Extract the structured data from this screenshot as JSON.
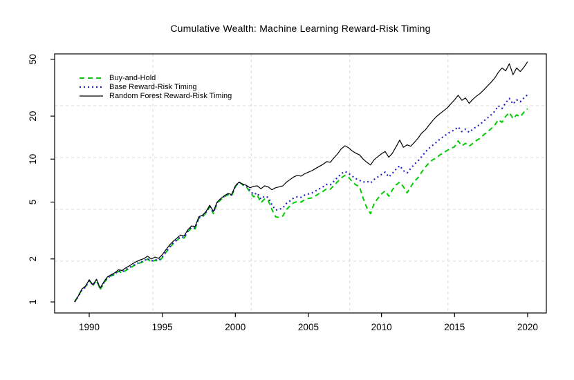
{
  "title": "Cumulative Wealth: Machine Learning Reward-Risk Timing",
  "axes": {
    "x_ticks": [
      1990,
      1995,
      2000,
      2005,
      2010,
      2015,
      2020
    ],
    "y_ticks": [
      1,
      2,
      5,
      10,
      20,
      50
    ],
    "y_scale": "log",
    "grid": {
      "nx": 5,
      "ny": 5
    }
  },
  "colors": {
    "background": "#ffffff",
    "axis": "#000000",
    "grid": "#d8d8d8",
    "buy_and_hold": "#00cc00",
    "base_timing": "#2222cc",
    "random_forest": "#000000"
  },
  "chart_data": {
    "type": "line",
    "title": "Cumulative Wealth: Machine Learning Reward-Risk Timing",
    "xlabel": "",
    "ylabel": "",
    "y_scale": "log",
    "ylim": [
      0.84,
      54
    ],
    "xlim": [
      1987.6,
      2021.3
    ],
    "legend_position": "top-left",
    "grid": "light-gray-dashed",
    "x": [
      1989.0,
      1989.25,
      1989.5,
      1989.75,
      1990.0,
      1990.25,
      1990.5,
      1990.75,
      1991.0,
      1991.25,
      1991.5,
      1991.75,
      1992.0,
      1992.25,
      1992.5,
      1992.75,
      1993.0,
      1993.25,
      1993.5,
      1993.75,
      1994.0,
      1994.25,
      1994.5,
      1994.75,
      1995.0,
      1995.25,
      1995.5,
      1995.75,
      1996.0,
      1996.25,
      1996.5,
      1996.75,
      1997.0,
      1997.25,
      1997.5,
      1997.75,
      1998.0,
      1998.25,
      1998.5,
      1998.75,
      1999.0,
      1999.25,
      1999.5,
      1999.75,
      2000.0,
      2000.25,
      2000.5,
      2000.75,
      2001.0,
      2001.25,
      2001.5,
      2001.75,
      2002.0,
      2002.25,
      2002.5,
      2002.75,
      2003.0,
      2003.25,
      2003.5,
      2003.75,
      2004.0,
      2004.25,
      2004.5,
      2004.75,
      2005.0,
      2005.25,
      2005.5,
      2005.75,
      2006.0,
      2006.25,
      2006.5,
      2006.75,
      2007.0,
      2007.25,
      2007.5,
      2007.75,
      2008.0,
      2008.25,
      2008.5,
      2008.75,
      2009.0,
      2009.25,
      2009.5,
      2009.75,
      2010.0,
      2010.25,
      2010.5,
      2010.75,
      2011.0,
      2011.25,
      2011.5,
      2011.75,
      2012.0,
      2012.25,
      2012.5,
      2012.75,
      2013.0,
      2013.25,
      2013.5,
      2013.75,
      2014.0,
      2014.25,
      2014.5,
      2014.75,
      2015.0,
      2015.25,
      2015.5,
      2015.75,
      2016.0,
      2016.25,
      2016.5,
      2016.75,
      2017.0,
      2017.25,
      2017.5,
      2017.75,
      2018.0,
      2018.25,
      2018.5,
      2018.75,
      2019.0,
      2019.25,
      2019.5,
      2019.75,
      2020.0
    ],
    "series": [
      {
        "name": "Buy-and-Hold",
        "color": "#00cc00",
        "line": "dashed",
        "values": [
          1.0,
          1.1,
          1.22,
          1.28,
          1.42,
          1.3,
          1.42,
          1.22,
          1.35,
          1.48,
          1.52,
          1.56,
          1.64,
          1.6,
          1.66,
          1.72,
          1.78,
          1.84,
          1.88,
          1.92,
          2.0,
          1.9,
          1.96,
          1.92,
          2.04,
          2.22,
          2.4,
          2.56,
          2.7,
          2.84,
          2.8,
          3.1,
          3.3,
          3.25,
          3.85,
          3.95,
          4.2,
          4.65,
          4.15,
          4.9,
          5.2,
          5.45,
          5.65,
          5.55,
          6.4,
          6.95,
          6.6,
          6.4,
          5.9,
          5.45,
          5.6,
          4.95,
          5.25,
          5.15,
          4.45,
          3.95,
          3.9,
          4.0,
          4.45,
          4.7,
          4.95,
          5.05,
          5.0,
          5.2,
          5.3,
          5.35,
          5.55,
          5.75,
          5.95,
          6.2,
          6.15,
          6.55,
          6.95,
          7.4,
          7.7,
          7.45,
          6.95,
          6.6,
          6.4,
          5.3,
          4.55,
          4.15,
          4.9,
          5.3,
          5.7,
          6.0,
          5.5,
          6.1,
          6.6,
          6.9,
          6.4,
          5.8,
          6.4,
          7.0,
          7.4,
          8.1,
          8.8,
          9.4,
          9.9,
          10.2,
          10.7,
          11.1,
          11.5,
          11.9,
          12.2,
          13.4,
          12.4,
          12.9,
          12.3,
          12.9,
          13.5,
          14.0,
          14.8,
          15.5,
          16.3,
          17.3,
          18.9,
          18.1,
          19.9,
          21.2,
          19.2,
          20.4,
          19.8,
          21.3,
          22.5
        ]
      },
      {
        "name": "Base Reward-Risk Timing",
        "color": "#2222cc",
        "line": "dotted",
        "values": [
          1.0,
          1.09,
          1.21,
          1.27,
          1.41,
          1.31,
          1.43,
          1.24,
          1.36,
          1.47,
          1.53,
          1.57,
          1.65,
          1.62,
          1.68,
          1.74,
          1.8,
          1.86,
          1.9,
          1.94,
          2.02,
          1.93,
          1.98,
          1.95,
          2.06,
          2.24,
          2.42,
          2.58,
          2.72,
          2.86,
          2.83,
          3.12,
          3.32,
          3.3,
          3.88,
          4.0,
          4.24,
          4.68,
          4.25,
          4.95,
          5.25,
          5.5,
          5.7,
          5.6,
          6.45,
          6.9,
          6.65,
          6.5,
          6.05,
          5.65,
          5.8,
          5.25,
          5.5,
          5.4,
          4.8,
          4.4,
          4.45,
          4.55,
          4.9,
          5.1,
          5.35,
          5.45,
          5.4,
          5.6,
          5.7,
          5.8,
          6.0,
          6.2,
          6.4,
          6.65,
          6.6,
          7.0,
          7.45,
          7.9,
          8.2,
          7.95,
          7.6,
          7.3,
          7.1,
          6.9,
          7.0,
          6.8,
          7.2,
          7.5,
          7.8,
          8.1,
          7.5,
          7.95,
          8.5,
          9.0,
          8.3,
          8.0,
          8.6,
          9.2,
          9.7,
          10.4,
          11.2,
          11.9,
          12.5,
          13.1,
          13.8,
          14.4,
          15.0,
          15.6,
          16.0,
          16.8,
          15.6,
          16.2,
          15.4,
          16.2,
          16.9,
          17.5,
          18.5,
          19.4,
          20.4,
          21.6,
          23.6,
          22.6,
          24.8,
          26.6,
          24.3,
          26.0,
          25.2,
          26.8,
          28.3
        ]
      },
      {
        "name": "Random Forest Reward-Risk Timing",
        "color": "#000000",
        "line": "solid",
        "values": [
          1.0,
          1.1,
          1.23,
          1.29,
          1.43,
          1.32,
          1.44,
          1.25,
          1.38,
          1.5,
          1.55,
          1.6,
          1.68,
          1.66,
          1.73,
          1.79,
          1.86,
          1.92,
          1.97,
          2.01,
          2.09,
          2.0,
          2.06,
          2.02,
          2.14,
          2.32,
          2.5,
          2.66,
          2.8,
          2.94,
          2.9,
          3.2,
          3.4,
          3.38,
          3.95,
          4.05,
          4.3,
          4.75,
          4.3,
          5.0,
          5.3,
          5.55,
          5.75,
          5.65,
          6.5,
          6.9,
          6.7,
          6.55,
          6.3,
          6.45,
          6.5,
          6.2,
          6.5,
          6.4,
          6.1,
          6.3,
          6.4,
          6.5,
          6.9,
          7.2,
          7.5,
          7.7,
          7.6,
          7.9,
          8.1,
          8.3,
          8.6,
          8.9,
          9.2,
          9.6,
          9.5,
          10.2,
          10.9,
          11.8,
          12.4,
          12.0,
          11.4,
          11.0,
          10.7,
          10.0,
          9.5,
          9.1,
          9.9,
          10.4,
          10.9,
          11.3,
          10.3,
          11.0,
          12.2,
          13.6,
          12.1,
          12.6,
          12.3,
          13.1,
          14.0,
          15.2,
          16.0,
          17.3,
          18.6,
          19.8,
          20.8,
          21.8,
          22.8,
          24.4,
          26.0,
          28.0,
          25.8,
          26.8,
          24.6,
          26.2,
          27.6,
          28.8,
          30.5,
          32.5,
          34.5,
          37.0,
          40.5,
          43.5,
          41.5,
          46.5,
          39.0,
          43.5,
          41.0,
          44.0,
          48.0
        ]
      }
    ]
  }
}
